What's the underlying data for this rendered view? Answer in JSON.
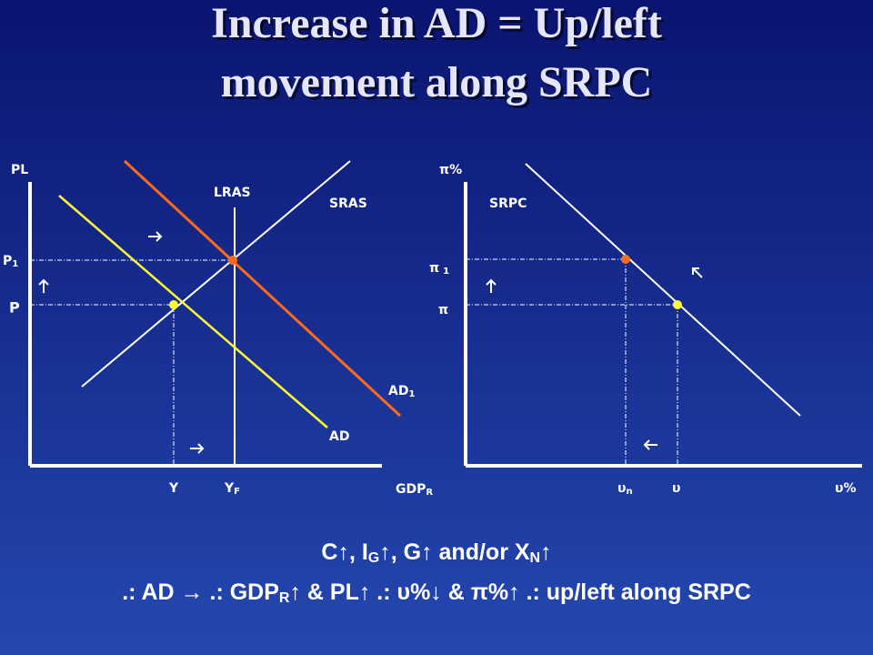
{
  "title": {
    "line1": "Increase in AD = Up/left",
    "line2": "movement along SRPC"
  },
  "left_graph": {
    "y_axis_label": "PL",
    "x_axis_label": {
      "main": "GDP",
      "sub": "R"
    },
    "curves": {
      "lras": "LRAS",
      "sras": "SRAS",
      "ad": "AD",
      "ad1": {
        "main": "AD",
        "sub": "1"
      }
    },
    "y_ticks": {
      "p1": {
        "main": "P",
        "sub": "1"
      },
      "p": "P"
    },
    "x_ticks": {
      "y": "Y",
      "yf": {
        "main": "Y",
        "sub": "F"
      }
    }
  },
  "right_graph": {
    "y_axis_label": "π%",
    "x_axis_label": "υ%",
    "curve": "SRPC",
    "y_ticks": {
      "pi1": {
        "main": "π",
        "sub": "1"
      },
      "pi": "π"
    },
    "x_ticks": {
      "un": {
        "main": "υ",
        "sub": "n"
      },
      "u": "υ"
    }
  },
  "caption": {
    "line1": [
      "C↑, I",
      "G",
      "↑, G↑ and/or X",
      "N",
      "↑"
    ],
    "line2": [
      ".: AD → .: GDP",
      "R",
      "↑ & PL↑ .: υ%↓ & π%↑ .: up/left along SRPC"
    ]
  }
}
